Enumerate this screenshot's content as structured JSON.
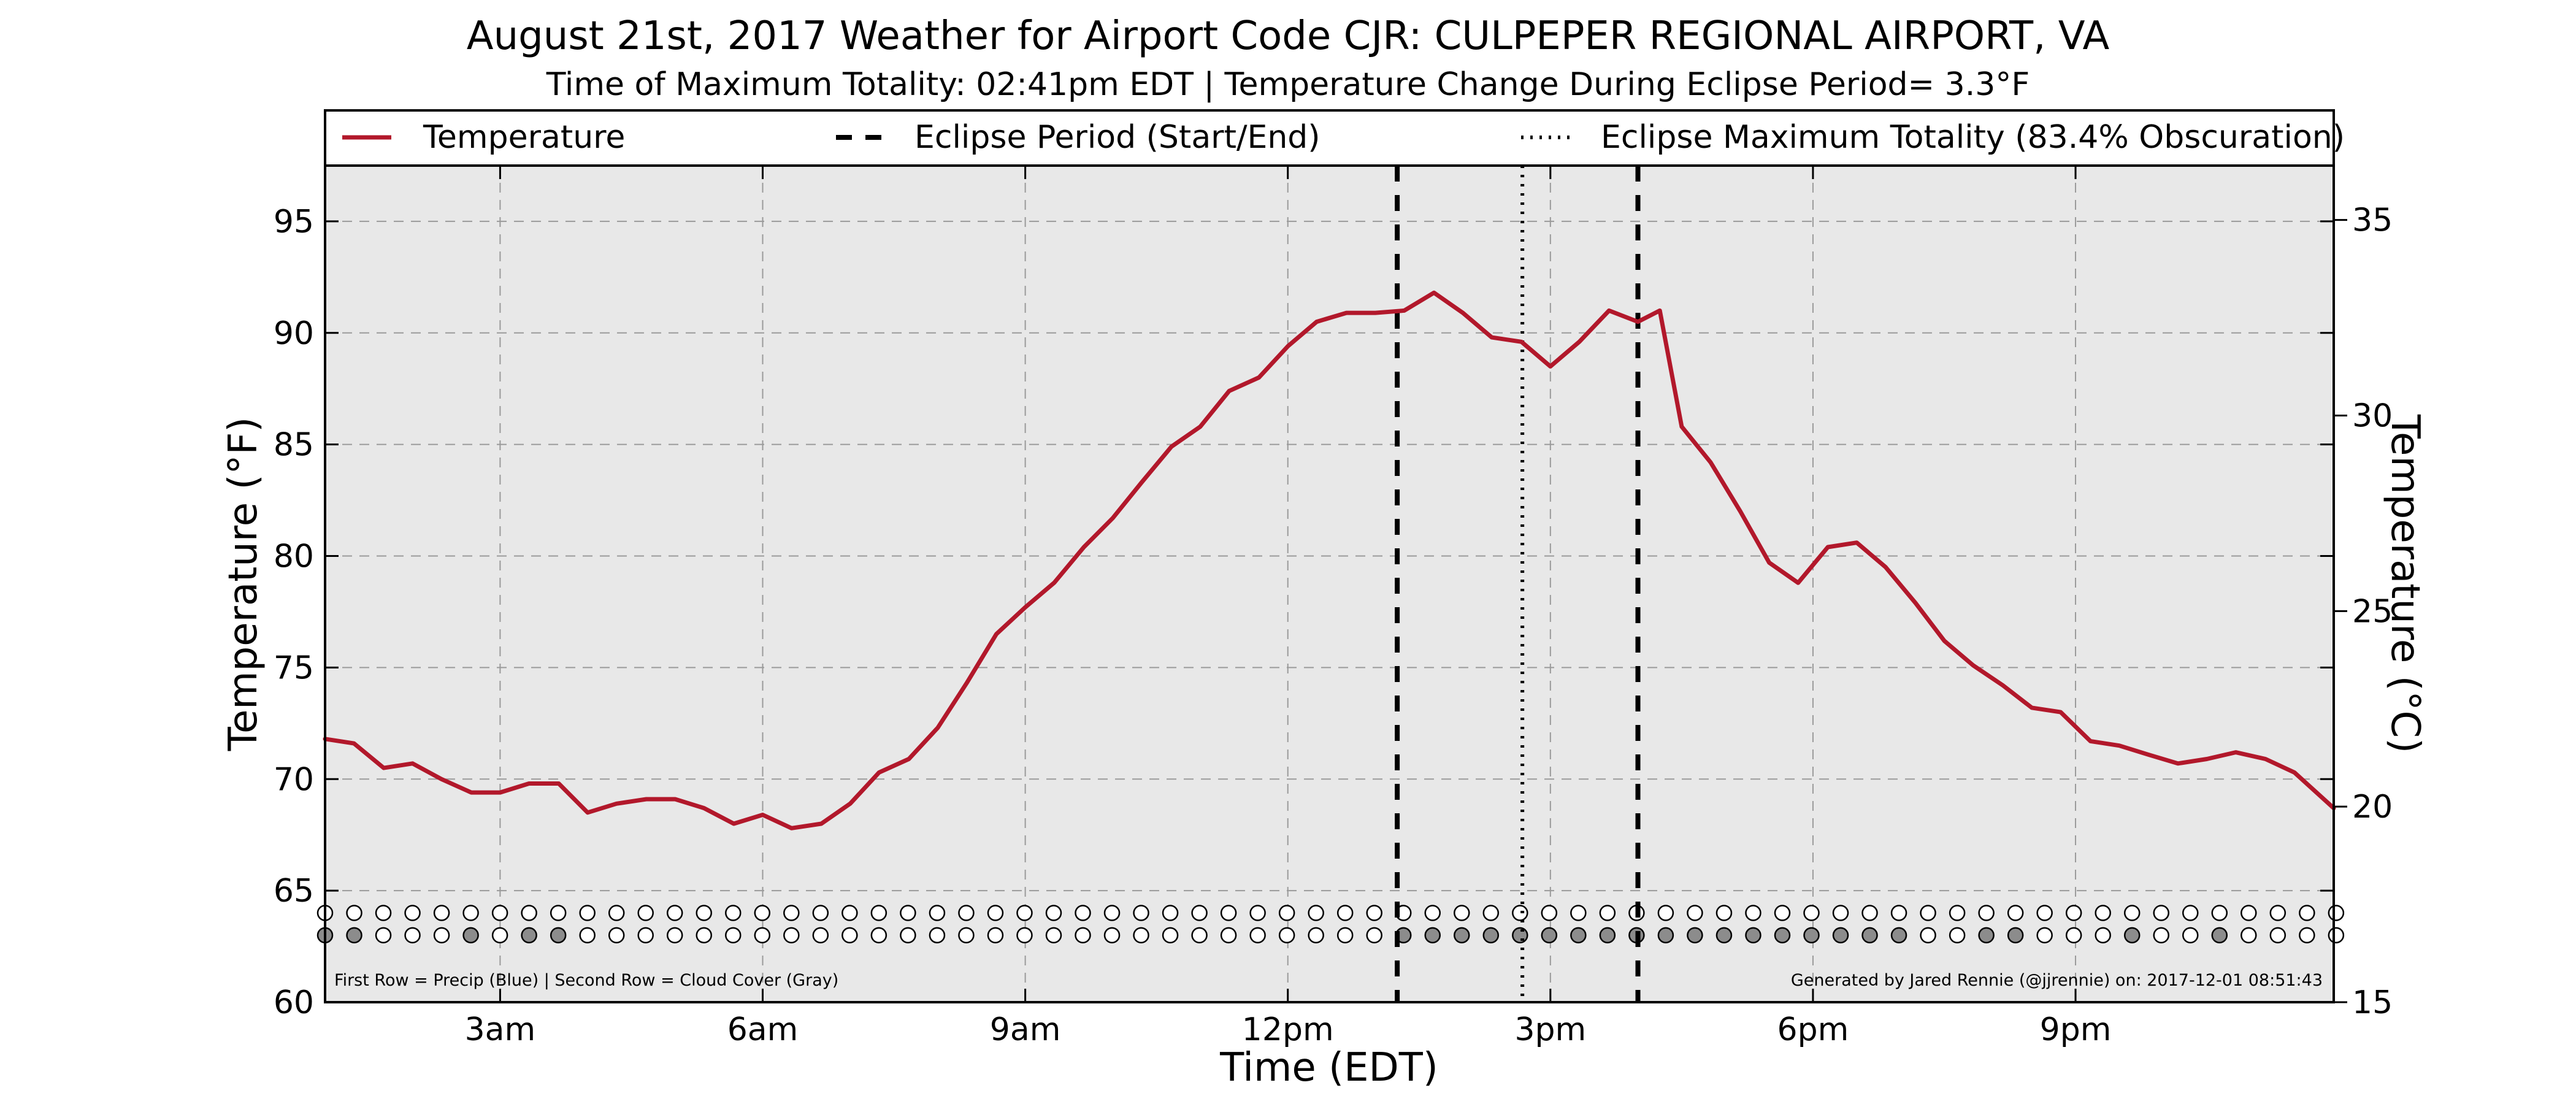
{
  "title": "August 21st, 2017 Weather for Airport Code CJR: CULPEPER REGIONAL AIRPORT, VA",
  "subtitle": "Time of Maximum Totality: 02:41pm EDT | Temperature Change During Eclipse Period= 3.3°F",
  "notes": {
    "left": "First Row = Precip (Blue) | Second Row = Cloud Cover (Gray)",
    "right": "Generated by Jared Rennie (@jjrennie) on: 2017-12-01 08:51:43"
  },
  "legend": {
    "position": "top",
    "items": [
      {
        "label": "Temperature",
        "style": "solid",
        "color": "#b2182b"
      },
      {
        "label": "Eclipse Period (Start/End)",
        "style": "dashed",
        "color": "#000000"
      },
      {
        "label": "Eclipse Maximum Totality (83.4% Obscuration)",
        "style": "dotted",
        "color": "#000000"
      }
    ]
  },
  "colors": {
    "temperature_line": "#b2182b",
    "plot_background": "#e8e8e8",
    "grid": "#9a9a9a",
    "cloud_cover_filled": "#8c8c8c"
  },
  "chart_data": {
    "type": "line",
    "xlabel": "Time (EDT)",
    "ylabel": "Temperature (°F)",
    "y2label": "Temperature (°C)",
    "ylim": [
      60,
      97.5
    ],
    "y2lim": [
      15,
      36.39
    ],
    "xlim": [
      1.0,
      23.95
    ],
    "grid": true,
    "x_ticks": [
      {
        "value": 3,
        "label": "3am"
      },
      {
        "value": 6,
        "label": "6am"
      },
      {
        "value": 9,
        "label": "9am"
      },
      {
        "value": 12,
        "label": "12pm"
      },
      {
        "value": 15,
        "label": "3pm"
      },
      {
        "value": 18,
        "label": "6pm"
      },
      {
        "value": 21,
        "label": "9pm"
      }
    ],
    "y_ticks": [
      60,
      65,
      70,
      75,
      80,
      85,
      90,
      95
    ],
    "y2_ticks": [
      15,
      20,
      25,
      30,
      35
    ],
    "eclipse_start": 13.25,
    "eclipse_end": 16.0,
    "max_totality": 14.68,
    "series": [
      {
        "name": "Temperature",
        "x": [
          1.0,
          1.33,
          1.67,
          2.0,
          2.33,
          2.67,
          3.0,
          3.33,
          3.67,
          4.0,
          4.33,
          4.67,
          5.0,
          5.33,
          5.67,
          6.0,
          6.33,
          6.67,
          7.0,
          7.33,
          7.67,
          8.0,
          8.33,
          8.67,
          9.0,
          9.33,
          9.67,
          10.0,
          10.33,
          10.67,
          11.0,
          11.33,
          11.67,
          12.0,
          12.33,
          12.67,
          13.0,
          13.33,
          13.67,
          14.0,
          14.33,
          14.67,
          15.0,
          15.33,
          15.67,
          16.0,
          16.25,
          16.5,
          16.83,
          17.17,
          17.5,
          17.83,
          18.17,
          18.5,
          18.83,
          19.17,
          19.5,
          19.83,
          20.17,
          20.5,
          20.83,
          21.17,
          21.5,
          21.83,
          22.17,
          22.5,
          22.83,
          23.17,
          23.5,
          23.95
        ],
        "values": [
          71.8,
          71.6,
          70.5,
          70.7,
          70.0,
          69.4,
          69.4,
          69.8,
          69.8,
          68.5,
          68.9,
          69.1,
          69.1,
          68.7,
          68.0,
          68.4,
          67.8,
          68.0,
          68.9,
          70.3,
          70.9,
          72.3,
          74.3,
          76.5,
          77.7,
          78.8,
          80.4,
          81.7,
          83.3,
          84.9,
          85.8,
          87.4,
          88.0,
          89.4,
          90.5,
          90.9,
          90.9,
          91.0,
          91.8,
          90.9,
          89.8,
          89.6,
          88.5,
          89.6,
          91.0,
          90.5,
          91.0,
          85.8,
          84.2,
          82.0,
          79.7,
          78.8,
          80.4,
          80.6,
          79.5,
          77.9,
          76.2,
          75.1,
          74.2,
          73.2,
          73.0,
          71.7,
          71.5,
          71.1,
          70.7,
          70.9,
          71.2,
          70.9,
          70.3,
          68.7
        ]
      }
    ],
    "precip_row": {
      "y": 64,
      "x_start": 1.0,
      "x_step": 0.333,
      "count": 70,
      "flags": [
        0,
        0,
        0,
        0,
        0,
        0,
        0,
        0,
        0,
        0,
        0,
        0,
        0,
        0,
        0,
        0,
        0,
        0,
        0,
        0,
        0,
        0,
        0,
        0,
        0,
        0,
        0,
        0,
        0,
        0,
        0,
        0,
        0,
        0,
        0,
        0,
        0,
        0,
        0,
        0,
        0,
        0,
        0,
        0,
        0,
        0,
        0,
        0,
        0,
        0,
        0,
        0,
        0,
        0,
        0,
        0,
        0,
        0,
        0,
        0,
        0,
        0,
        0,
        0,
        0,
        0,
        0,
        0,
        0,
        0
      ]
    },
    "cloud_row": {
      "y": 63,
      "x_start": 1.0,
      "x_step": 0.333,
      "count": 70,
      "flags": [
        1,
        1,
        0,
        0,
        0,
        1,
        0,
        1,
        1,
        0,
        0,
        0,
        0,
        0,
        0,
        0,
        0,
        0,
        0,
        0,
        0,
        0,
        0,
        0,
        0,
        0,
        0,
        0,
        0,
        0,
        0,
        0,
        0,
        0,
        0,
        0,
        0,
        1,
        1,
        1,
        1,
        1,
        1,
        1,
        1,
        1,
        1,
        1,
        1,
        1,
        1,
        1,
        1,
        1,
        1,
        0,
        0,
        1,
        1,
        0,
        0,
        0,
        1,
        0,
        0,
        1,
        0,
        0,
        0,
        0
      ]
    }
  }
}
